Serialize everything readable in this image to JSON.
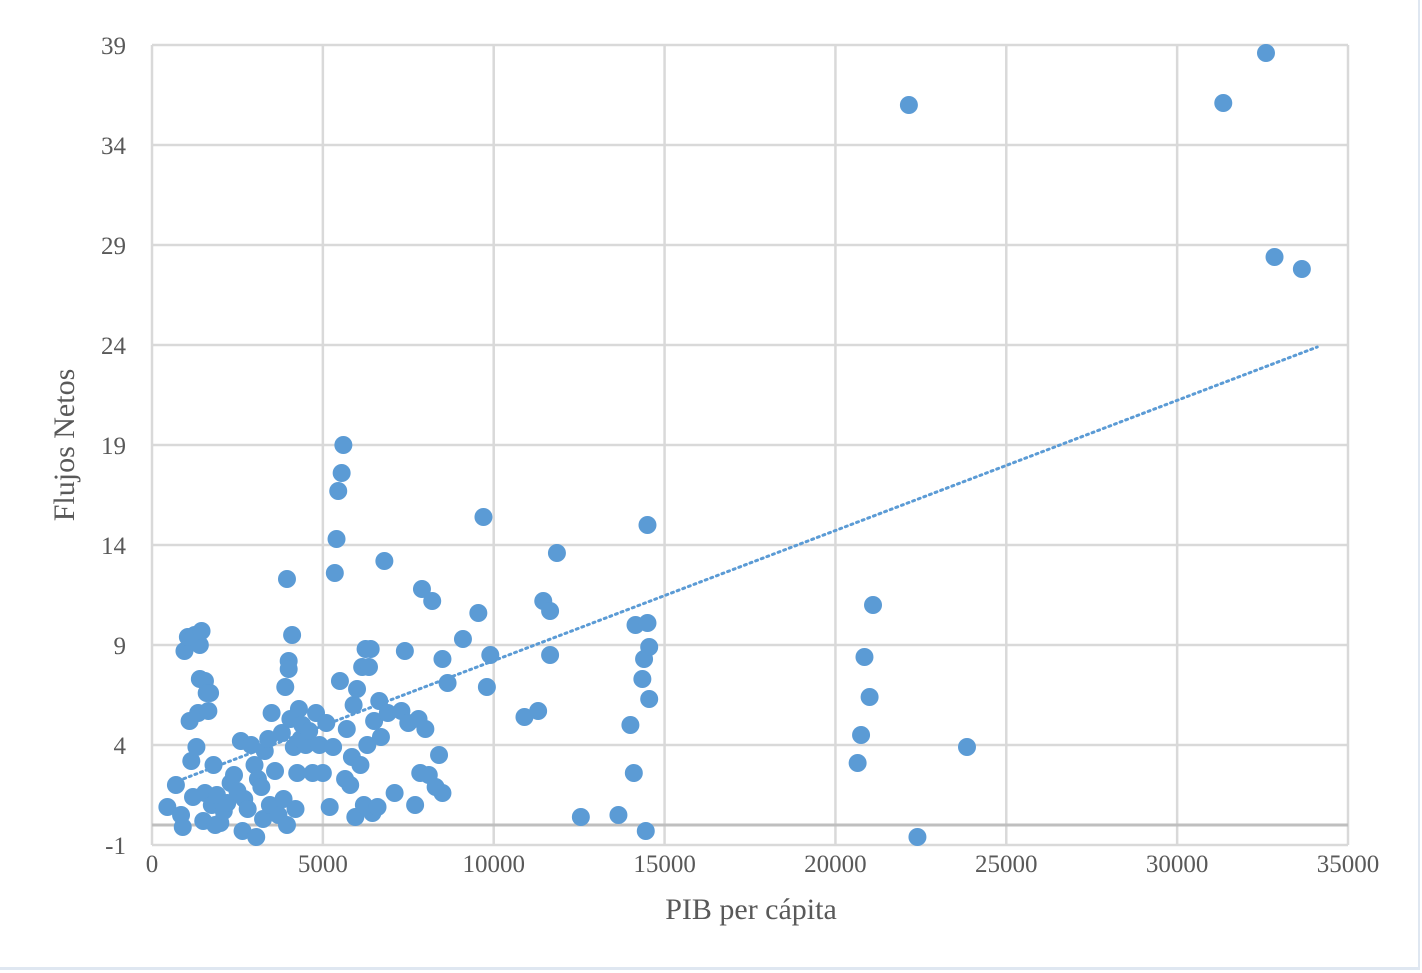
{
  "chart_data": {
    "type": "scatter",
    "xlabel": "PIB per cápita",
    "ylabel": "Flujos Netos",
    "xlim": [
      0,
      35000
    ],
    "ylim": [
      -1,
      39
    ],
    "x_ticks": [
      "0",
      "5000",
      "10000",
      "15000",
      "20000",
      "25000",
      "30000",
      "35000"
    ],
    "y_ticks": [
      "-1",
      "4",
      "9",
      "14",
      "19",
      "24",
      "29",
      "34",
      "39"
    ],
    "grid": true,
    "legend": "none",
    "colors": {
      "points": "#5b9bd5",
      "trendline": "#5b9bd5",
      "grid": "#d9d9d9",
      "text": "#595959"
    },
    "trendline": {
      "style": "dotted",
      "type": "linear",
      "from": [
        600,
        2.1
      ],
      "to": [
        34100,
        23.9
      ]
    },
    "series": [
      {
        "points": [
          [
            450,
            0.9
          ],
          [
            700,
            2.0
          ],
          [
            850,
            0.5
          ],
          [
            900,
            -0.1
          ],
          [
            950,
            8.7
          ],
          [
            1050,
            9.4
          ],
          [
            1100,
            5.2
          ],
          [
            1150,
            3.2
          ],
          [
            1200,
            1.4
          ],
          [
            1250,
            9.5
          ],
          [
            1300,
            3.9
          ],
          [
            1350,
            5.6
          ],
          [
            1400,
            9.0
          ],
          [
            1400,
            7.3
          ],
          [
            1450,
            9.7
          ],
          [
            1500,
            0.2
          ],
          [
            1550,
            1.6
          ],
          [
            1550,
            7.2
          ],
          [
            1600,
            6.6
          ],
          [
            1650,
            5.7
          ],
          [
            1700,
            6.6
          ],
          [
            1750,
            1.0
          ],
          [
            1800,
            3.0
          ],
          [
            1850,
            0.0
          ],
          [
            1900,
            1.5
          ],
          [
            2000,
            0.1
          ],
          [
            2100,
            0.7
          ],
          [
            2200,
            1.1
          ],
          [
            2300,
            2.1
          ],
          [
            2400,
            2.5
          ],
          [
            2500,
            1.7
          ],
          [
            2600,
            4.2
          ],
          [
            2650,
            -0.3
          ],
          [
            2700,
            1.3
          ],
          [
            2800,
            0.8
          ],
          [
            2900,
            4.0
          ],
          [
            3000,
            3.0
          ],
          [
            3050,
            -0.6
          ],
          [
            3100,
            2.3
          ],
          [
            3200,
            1.9
          ],
          [
            3250,
            0.3
          ],
          [
            3300,
            3.7
          ],
          [
            3400,
            4.3
          ],
          [
            3450,
            1.0
          ],
          [
            3500,
            5.6
          ],
          [
            3600,
            2.7
          ],
          [
            3700,
            0.5
          ],
          [
            3800,
            4.6
          ],
          [
            3850,
            1.3
          ],
          [
            3900,
            6.9
          ],
          [
            3950,
            12.3
          ],
          [
            3950,
            0.0
          ],
          [
            4000,
            8.2
          ],
          [
            4000,
            7.8
          ],
          [
            4050,
            5.3
          ],
          [
            4100,
            9.5
          ],
          [
            4150,
            3.9
          ],
          [
            4200,
            0.8
          ],
          [
            4250,
            2.6
          ],
          [
            4300,
            5.8
          ],
          [
            4350,
            4.3
          ],
          [
            4400,
            5.0
          ],
          [
            4500,
            4.0
          ],
          [
            4600,
            4.7
          ],
          [
            4700,
            2.6
          ],
          [
            4800,
            5.6
          ],
          [
            4900,
            4.0
          ],
          [
            5000,
            2.6
          ],
          [
            5100,
            5.1
          ],
          [
            5200,
            0.9
          ],
          [
            5300,
            3.9
          ],
          [
            5350,
            12.6
          ],
          [
            5400,
            14.3
          ],
          [
            5450,
            16.7
          ],
          [
            5500,
            7.2
          ],
          [
            5550,
            17.6
          ],
          [
            5600,
            19.0
          ],
          [
            5650,
            2.3
          ],
          [
            5700,
            4.8
          ],
          [
            5800,
            2.0
          ],
          [
            5850,
            3.4
          ],
          [
            5900,
            6.0
          ],
          [
            5950,
            0.4
          ],
          [
            6000,
            6.8
          ],
          [
            6100,
            3.0
          ],
          [
            6150,
            7.9
          ],
          [
            6200,
            1.0
          ],
          [
            6250,
            8.8
          ],
          [
            6300,
            4.0
          ],
          [
            6350,
            7.9
          ],
          [
            6400,
            8.8
          ],
          [
            6450,
            0.6
          ],
          [
            6500,
            5.2
          ],
          [
            6600,
            0.9
          ],
          [
            6650,
            6.2
          ],
          [
            6700,
            4.4
          ],
          [
            6800,
            13.2
          ],
          [
            6900,
            5.6
          ],
          [
            7100,
            1.6
          ],
          [
            7300,
            5.7
          ],
          [
            7400,
            8.7
          ],
          [
            7500,
            5.1
          ],
          [
            7700,
            1.0
          ],
          [
            7800,
            5.3
          ],
          [
            7850,
            2.6
          ],
          [
            7900,
            11.8
          ],
          [
            8000,
            4.8
          ],
          [
            8100,
            2.5
          ],
          [
            8200,
            11.2
          ],
          [
            8300,
            1.9
          ],
          [
            8400,
            3.5
          ],
          [
            8500,
            8.3
          ],
          [
            8500,
            1.6
          ],
          [
            8650,
            7.1
          ],
          [
            9100,
            9.3
          ],
          [
            9550,
            10.6
          ],
          [
            9700,
            15.4
          ],
          [
            9800,
            6.9
          ],
          [
            9900,
            8.5
          ],
          [
            10900,
            5.4
          ],
          [
            11300,
            5.7
          ],
          [
            11450,
            11.2
          ],
          [
            11650,
            10.7
          ],
          [
            11650,
            8.5
          ],
          [
            11850,
            13.6
          ],
          [
            12550,
            0.4
          ],
          [
            13650,
            0.5
          ],
          [
            14000,
            5.0
          ],
          [
            14100,
            2.6
          ],
          [
            14150,
            10.0
          ],
          [
            14350,
            7.3
          ],
          [
            14400,
            8.3
          ],
          [
            14450,
            -0.3
          ],
          [
            14500,
            15.0
          ],
          [
            14500,
            10.1
          ],
          [
            14550,
            8.9
          ],
          [
            14550,
            6.3
          ],
          [
            20650,
            3.1
          ],
          [
            20750,
            4.5
          ],
          [
            20850,
            8.4
          ],
          [
            21000,
            6.4
          ],
          [
            21100,
            11.0
          ],
          [
            22150,
            36.0
          ],
          [
            22400,
            -0.6
          ],
          [
            23850,
            3.9
          ],
          [
            31350,
            36.1
          ],
          [
            32600,
            38.6
          ],
          [
            32850,
            28.4
          ],
          [
            33650,
            27.8
          ]
        ]
      }
    ]
  }
}
